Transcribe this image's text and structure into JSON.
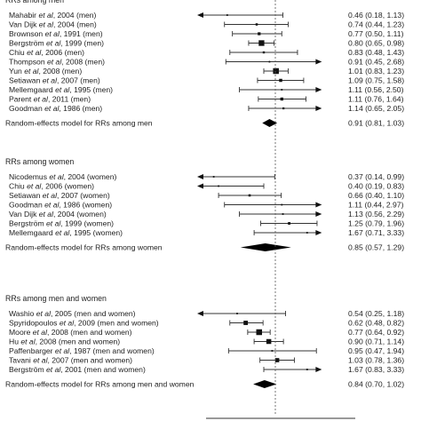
{
  "chart_data": {
    "type": "forest",
    "title": "",
    "reference_value": 1,
    "x_range": [
      0.3,
      2.0
    ],
    "x_scale": "log",
    "groups": [
      {
        "title": "RRs among men",
        "studies": [
          {
            "author": "Mahabir",
            "etal": "et al",
            "rest": ", 2004 (men)",
            "rr": 0.46,
            "lo": 0.18,
            "hi": 1.13,
            "ci_text": "0.46 (0.18, 1.13)"
          },
          {
            "author": "Van Dijk",
            "etal": "et al",
            "rest": ", 2004 (men)",
            "rr": 0.74,
            "lo": 0.44,
            "hi": 1.23,
            "ci_text": "0.74 (0.44, 1.23)"
          },
          {
            "author": "Brownson",
            "etal": "et al",
            "rest": ", 1991 (men)",
            "rr": 0.77,
            "lo": 0.5,
            "hi": 1.11,
            "ci_text": "0.77 (0.50, 1.11)"
          },
          {
            "author": "Bergström",
            "etal": "et al",
            "rest": ", 1999 (men)",
            "rr": 0.8,
            "lo": 0.65,
            "hi": 0.98,
            "ci_text": "0.80 (0.65, 0.98)"
          },
          {
            "author": "Chiu",
            "etal": "et al",
            "rest": ", 2006 (men)",
            "rr": 0.83,
            "lo": 0.48,
            "hi": 1.43,
            "ci_text": "0.83 (0.48, 1.43)"
          },
          {
            "author": "Thompson",
            "etal": "et al",
            "rest": ", 2008 (men)",
            "rr": 0.91,
            "lo": 0.45,
            "hi": 2.68,
            "ci_text": "0.91 (0.45, 2.68)"
          },
          {
            "author": "Yun",
            "etal": "et al",
            "rest": ", 2008 (men)",
            "rr": 1.01,
            "lo": 0.83,
            "hi": 1.23,
            "ci_text": "1.01 (0.83, 1.23)"
          },
          {
            "author": "Setiawan",
            "etal": "et al",
            "rest": ", 2007 (men)",
            "rr": 1.09,
            "lo": 0.75,
            "hi": 1.58,
            "ci_text": "1.09 (0.75, 1.58)"
          },
          {
            "author": "Mellemgaard",
            "etal": "et al",
            "rest": ", 1995 (men)",
            "rr": 1.11,
            "lo": 0.56,
            "hi": 2.5,
            "ci_text": "1.11 (0.56, 2.50)"
          },
          {
            "author": "Parent",
            "etal": "et al",
            "rest": ", 2011 (men)",
            "rr": 1.11,
            "lo": 0.76,
            "hi": 1.64,
            "ci_text": "1.11 (0.76, 1.64)"
          },
          {
            "author": "Goodman",
            "etal": "et al",
            "rest": ", 1986 (men)",
            "rr": 1.14,
            "lo": 0.65,
            "hi": 2.05,
            "ci_text": "1.14 (0.65, 2.05)"
          }
        ],
        "summary": {
          "label": "Random-effects model for RRs among men",
          "rr": 0.91,
          "lo": 0.81,
          "hi": 1.03,
          "ci_text": "0.91 (0.81, 1.03)"
        }
      },
      {
        "title": "RRs among women",
        "studies": [
          {
            "author": "Nicodemus",
            "etal": "et al",
            "rest": ", 2004 (women)",
            "rr": 0.37,
            "lo": 0.14,
            "hi": 0.99,
            "ci_text": "0.37 (0.14, 0.99)"
          },
          {
            "author": "Chiu",
            "etal": "et al",
            "rest": ", 2006 (women)",
            "rr": 0.4,
            "lo": 0.19,
            "hi": 0.83,
            "ci_text": "0.40 (0.19, 0.83)"
          },
          {
            "author": "Setiawan",
            "etal": "et al",
            "rest": ", 2007 (women)",
            "rr": 0.66,
            "lo": 0.4,
            "hi": 1.1,
            "ci_text": "0.66 (0.40, 1.10)"
          },
          {
            "author": "Goodman",
            "etal": "et al",
            "rest": ", 1986 (women)",
            "rr": 1.11,
            "lo": 0.44,
            "hi": 2.97,
            "ci_text": "1.11 (0.44, 2.97)"
          },
          {
            "author": "Van Dijk",
            "etal": "et al",
            "rest": ", 2004 (women)",
            "rr": 1.13,
            "lo": 0.56,
            "hi": 2.29,
            "ci_text": "1.13 (0.56, 2.29)"
          },
          {
            "author": "Bergström",
            "etal": "et al",
            "rest": ", 1999 (women)",
            "rr": 1.25,
            "lo": 0.79,
            "hi": 1.96,
            "ci_text": "1.25 (0.79, 1.96)"
          },
          {
            "author": "Mellemgaard",
            "etal": "et al",
            "rest": ", 1995 (women)",
            "rr": 1.67,
            "lo": 0.71,
            "hi": 3.33,
            "ci_text": "1.67 (0.71, 3.33)"
          }
        ],
        "summary": {
          "label": "Random-effects model for RRs among women",
          "rr": 0.85,
          "lo": 0.57,
          "hi": 1.29,
          "ci_text": "0.85 (0.57, 1.29)"
        }
      },
      {
        "title": "RRs among men and women",
        "studies": [
          {
            "author": "Washio",
            "etal": "et al",
            "rest": ", 2005 (men and women)",
            "rr": 0.54,
            "lo": 0.25,
            "hi": 1.18,
            "ci_text": "0.54 (0.25, 1.18)"
          },
          {
            "author": "Spyridopoulos",
            "etal": "et al",
            "rest": ", 2009 (men and women)",
            "rr": 0.62,
            "lo": 0.48,
            "hi": 0.82,
            "ci_text": "0.62 (0.48, 0.82)"
          },
          {
            "author": "Moore",
            "etal": "et al",
            "rest": ", 2008 (men and women)",
            "rr": 0.77,
            "lo": 0.64,
            "hi": 0.92,
            "ci_text": "0.77 (0.64, 0.92)"
          },
          {
            "author": "Hu",
            "etal": "et al",
            "rest": ", 2008 (men and women)",
            "rr": 0.9,
            "lo": 0.71,
            "hi": 1.14,
            "ci_text": "0.90 (0.71, 1.14)"
          },
          {
            "author": "Paffenbarger",
            "etal": "et al",
            "rest": ", 1987 (men and women)",
            "rr": 0.95,
            "lo": 0.47,
            "hi": 1.94,
            "ci_text": "0.95 (0.47, 1.94)"
          },
          {
            "author": "Tavani",
            "etal": "et al",
            "rest": ", 2007 (men and women)",
            "rr": 1.03,
            "lo": 0.78,
            "hi": 1.36,
            "ci_text": "1.03 (0.78, 1.36)"
          },
          {
            "author": "Bergström",
            "etal": "et al",
            "rest": ", 2001 (men and women)",
            "rr": 1.67,
            "lo": 0.83,
            "hi": 3.33,
            "ci_text": "1.67 (0.83, 3.33)"
          }
        ],
        "summary": {
          "label": "Random-effects model for RRs among men and women",
          "rr": 0.84,
          "lo": 0.7,
          "hi": 1.02,
          "ci_text": "0.84 (0.70, 1.02)"
        }
      }
    ]
  }
}
